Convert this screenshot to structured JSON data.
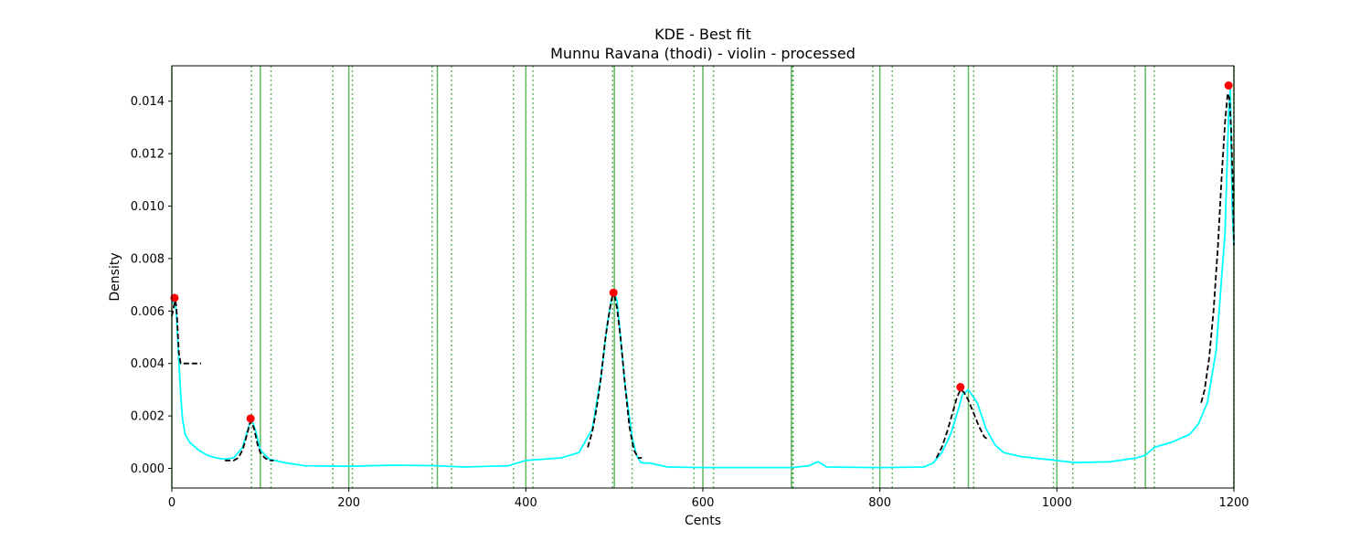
{
  "chart_data": {
    "type": "line",
    "title": "KDE - Best fit",
    "subtitle": "Munnu Ravana (thodi) - violin - processed",
    "xlabel": "Cents",
    "ylabel": "Density",
    "xlim": [
      0,
      1200
    ],
    "ylim": [
      -0.00075,
      0.01535
    ],
    "x_ticks": [
      0,
      200,
      400,
      600,
      800,
      1000,
      1200
    ],
    "x_tick_labels": [
      "0",
      "200",
      "400",
      "600",
      "800",
      "1000",
      "1200"
    ],
    "y_ticks": [
      0.0,
      0.002,
      0.004,
      0.006,
      0.008,
      0.01,
      0.012,
      0.014
    ],
    "y_tick_labels": [
      "0.000",
      "0.002",
      "0.004",
      "0.006",
      "0.008",
      "0.010",
      "0.012",
      "0.014"
    ],
    "grid": false,
    "colors": {
      "kde": "#00ffff",
      "fit": "#000000",
      "peak": "#ff0000",
      "ref_line": "#2ca02c"
    },
    "kde": {
      "x": [
        0,
        3,
        5,
        7,
        10,
        12,
        15,
        20,
        30,
        40,
        50,
        60,
        70,
        80,
        86,
        90,
        95,
        100,
        110,
        130,
        150,
        200,
        250,
        300,
        330,
        380,
        400,
        440,
        460,
        475,
        485,
        492,
        497,
        500,
        503,
        507,
        512,
        520,
        525,
        530,
        535,
        540,
        560,
        600,
        650,
        700,
        720,
        730,
        740,
        800,
        850,
        860,
        870,
        880,
        890,
        893,
        900,
        910,
        920,
        930,
        940,
        960,
        1000,
        1020,
        1060,
        1090,
        1100,
        1110,
        1130,
        1150,
        1160,
        1170,
        1180,
        1190,
        1194,
        1196,
        1198,
        1200
      ],
      "y": [
        0.0063,
        0.0064,
        0.006,
        0.0047,
        0.0028,
        0.0019,
        0.0013,
        0.001,
        0.0007,
        0.0005,
        0.0004,
        0.00035,
        0.0004,
        0.0008,
        0.0015,
        0.0019,
        0.0014,
        0.0007,
        0.00035,
        0.0002,
        0.0001,
        8e-05,
        0.00012,
        0.0001,
        5e-05,
        0.0001,
        0.0003,
        0.0004,
        0.0006,
        0.0015,
        0.0035,
        0.0055,
        0.0065,
        0.0067,
        0.0064,
        0.005,
        0.0032,
        0.0012,
        0.0005,
        0.00022,
        0.0002,
        0.0002,
        5e-05,
        3e-05,
        3e-05,
        3e-05,
        0.0001,
        0.00025,
        5e-05,
        3e-05,
        5e-05,
        0.0002,
        0.0006,
        0.0013,
        0.0024,
        0.0028,
        0.003,
        0.0025,
        0.0015,
        0.0009,
        0.0006,
        0.00045,
        0.0003,
        0.00022,
        0.00025,
        0.0004,
        0.0005,
        0.0008,
        0.001,
        0.0013,
        0.0017,
        0.0025,
        0.0045,
        0.009,
        0.0135,
        0.0145,
        0.01,
        0.0085
      ]
    },
    "fits": [
      {
        "x": [
          0,
          3,
          4,
          5,
          6,
          7,
          8,
          10,
          15,
          20,
          25,
          30,
          33
        ],
        "y": [
          0.0058,
          0.0063,
          0.0064,
          0.0062,
          0.0057,
          0.005,
          0.0044,
          0.004,
          0.004,
          0.004,
          0.004,
          0.004,
          0.004
        ]
      },
      {
        "x": [
          60,
          70,
          75,
          80,
          85,
          88,
          90,
          93,
          97,
          100,
          105,
          110,
          115
        ],
        "y": [
          0.0003,
          0.0003,
          0.0004,
          0.0007,
          0.0013,
          0.0017,
          0.0018,
          0.0015,
          0.0009,
          0.0006,
          0.0004,
          0.0003,
          0.0003
        ]
      },
      {
        "x": [
          470,
          475,
          480,
          485,
          490,
          495,
          498,
          500,
          503,
          507,
          512,
          517,
          522,
          527,
          531
        ],
        "y": [
          0.0008,
          0.0014,
          0.0023,
          0.0035,
          0.005,
          0.0061,
          0.0066,
          0.0066,
          0.0061,
          0.005,
          0.0032,
          0.0016,
          0.0007,
          0.0004,
          0.0004
        ]
      },
      {
        "x": [
          864,
          870,
          876,
          882,
          887,
          891,
          895,
          900,
          906,
          912,
          918,
          922
        ],
        "y": [
          0.0004,
          0.0008,
          0.0014,
          0.0021,
          0.0027,
          0.003,
          0.0029,
          0.0026,
          0.0021,
          0.0016,
          0.0012,
          0.0011
        ]
      },
      {
        "x": [
          1163,
          1167,
          1172,
          1177,
          1182,
          1186,
          1190,
          1193,
          1195,
          1197,
          1199,
          1200
        ],
        "y": [
          0.0025,
          0.003,
          0.0042,
          0.006,
          0.0085,
          0.011,
          0.0132,
          0.0143,
          0.0141,
          0.0128,
          0.0105,
          0.0085
        ]
      }
    ],
    "peaks": {
      "x": [
        3,
        89,
        499,
        891,
        1194
      ],
      "y": [
        0.0065,
        0.0019,
        0.0067,
        0.0031,
        0.0146
      ]
    },
    "reference_lines": {
      "solid": [
        0,
        100,
        200,
        300,
        400,
        500,
        600,
        700,
        800,
        900,
        1000,
        1100,
        1200
      ],
      "dotted": [
        90,
        112,
        182,
        204,
        294,
        316,
        386,
        408,
        498,
        520,
        590,
        612,
        701,
        702,
        792,
        814,
        884,
        906,
        996,
        1018,
        1088,
        1110,
        1200
      ]
    }
  }
}
